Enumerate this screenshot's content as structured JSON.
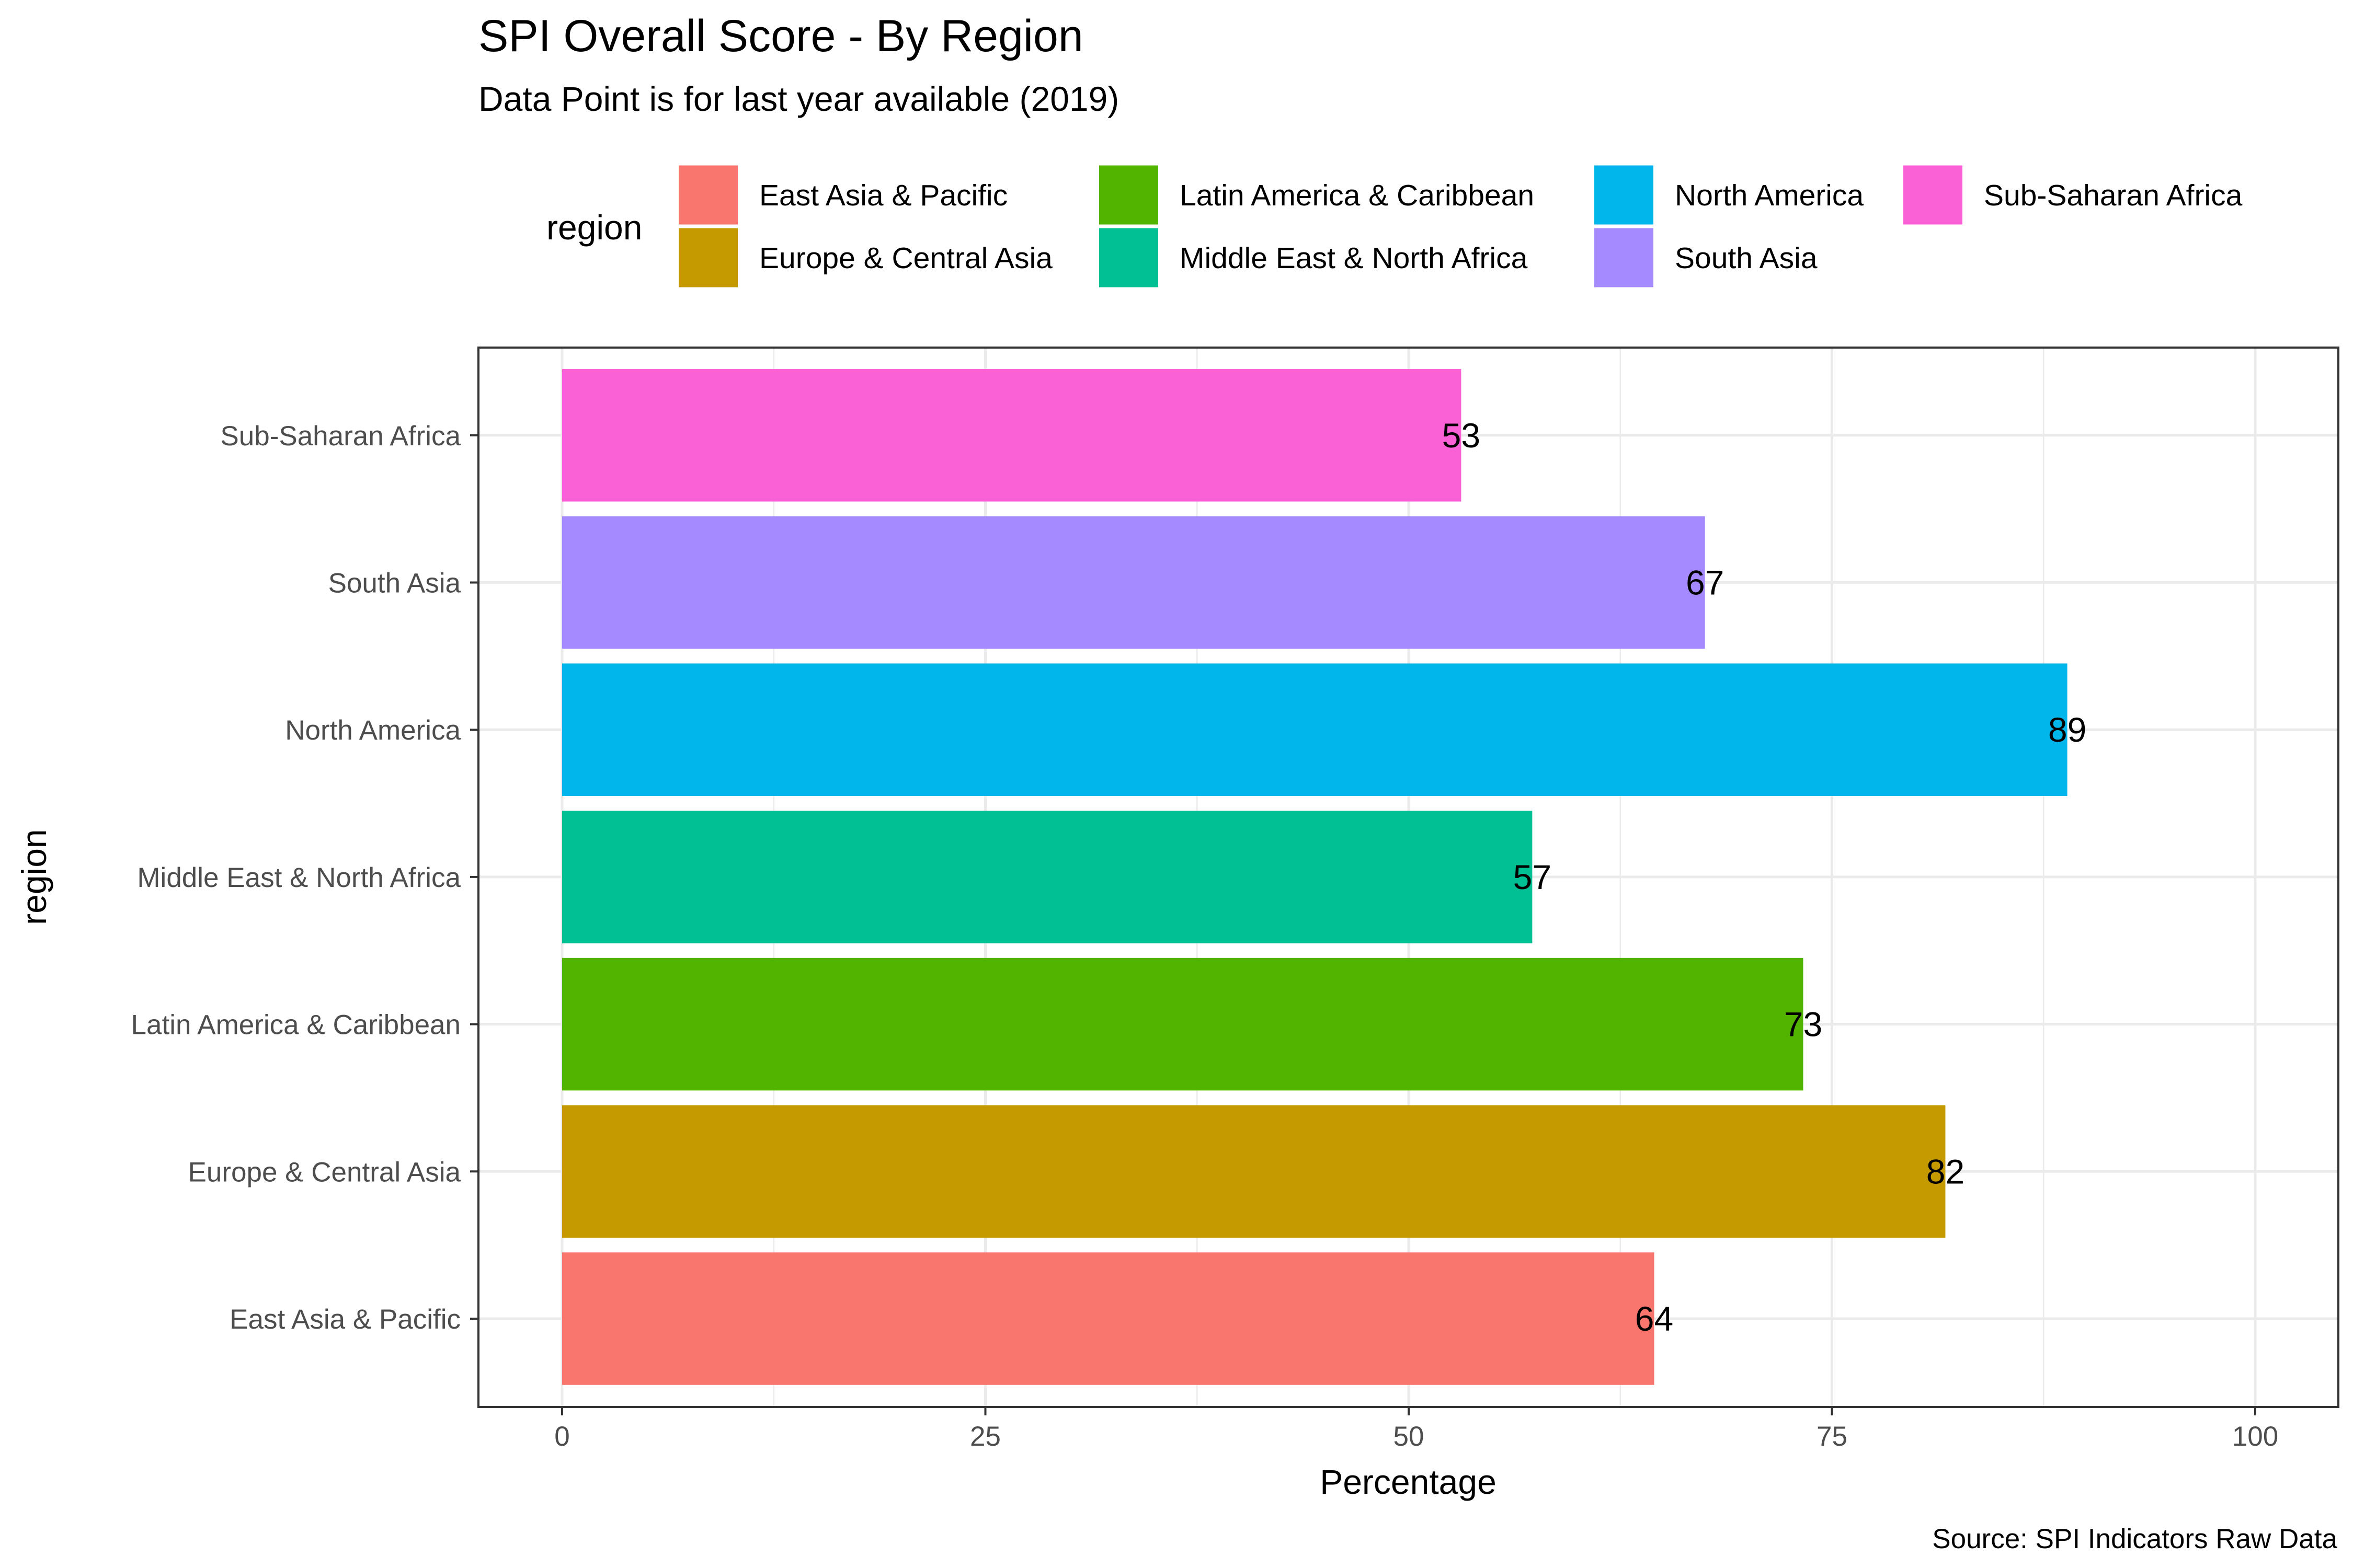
{
  "chart_data": {
    "type": "bar",
    "orientation": "horizontal",
    "title": "SPI Overall Score - By Region",
    "subtitle": "Data Point is for last year available (2019)",
    "xlabel": "Percentage",
    "ylabel": "region",
    "caption": "Source: SPI Indicators Raw Data",
    "xlim": [
      0,
      100
    ],
    "xticks": [
      "0",
      "25",
      "50",
      "75",
      "100"
    ],
    "xtick_values": [
      0,
      25,
      50,
      75,
      100
    ],
    "minor_grid_values": [
      12.5,
      37.5,
      62.5,
      87.5
    ],
    "grid": true,
    "legend": {
      "title": "region",
      "placement": "top",
      "entries": [
        {
          "label": "East Asia & Pacific",
          "color": "#F8766D"
        },
        {
          "label": "Europe & Central Asia",
          "color": "#C49A00"
        },
        {
          "label": "Latin America & Caribbean",
          "color": "#53B400"
        },
        {
          "label": "Middle East & North Africa",
          "color": "#00C094"
        },
        {
          "label": "North America",
          "color": "#00B6EB"
        },
        {
          "label": "South Asia",
          "color": "#A58AFF"
        },
        {
          "label": "Sub-Saharan Africa",
          "color": "#FB61D7"
        }
      ]
    },
    "categories": [
      "East Asia & Pacific",
      "Europe & Central Asia",
      "Latin America & Caribbean",
      "Middle East & North Africa",
      "North America",
      "South Asia",
      "Sub-Saharan Africa"
    ],
    "values": [
      64.5,
      81.7,
      73.3,
      57.3,
      88.9,
      67.5,
      53.1
    ],
    "data_labels": [
      "64",
      "82",
      "73",
      "57",
      "89",
      "67",
      "53"
    ],
    "colors": [
      "#F8766D",
      "#C49A00",
      "#53B400",
      "#00C094",
      "#00B6EB",
      "#A58AFF",
      "#FB61D7"
    ]
  }
}
